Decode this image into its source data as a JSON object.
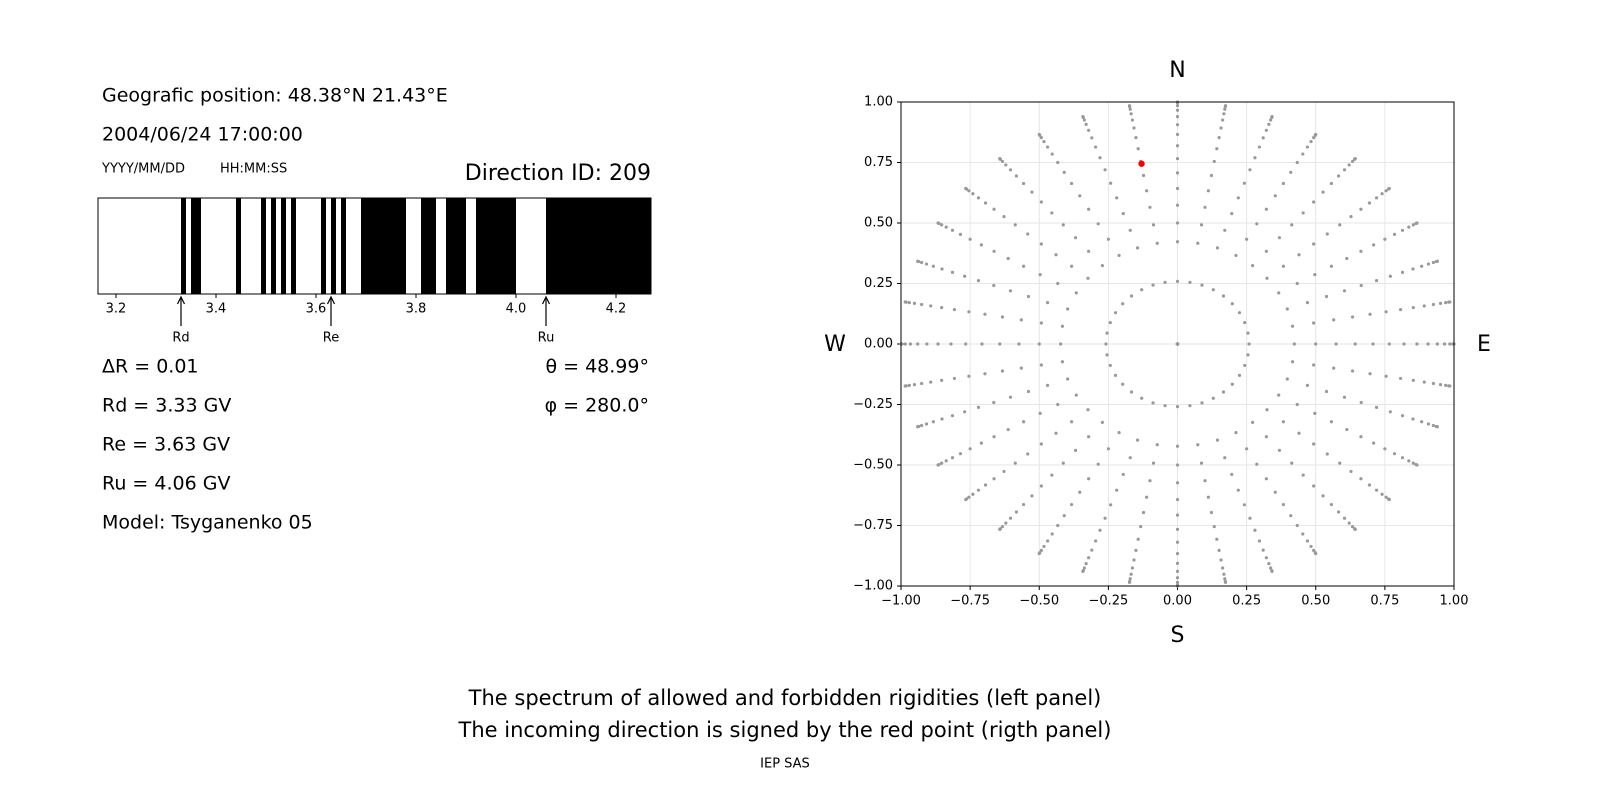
{
  "info": {
    "position": "Geografic position: 48.38°N 21.43°E",
    "datetime": "2004/06/24 17:00:00",
    "date_format": "YYYY/MM/DD",
    "time_format": "HH:MM:SS",
    "direction_id": "Direction ID: 209",
    "delta_r": "ΔR = 0.01",
    "theta": "θ = 48.99°",
    "phi": "φ = 280.0°",
    "rd": "Rd = 3.33 GV",
    "re": "Re = 3.63 GV",
    "ru": "Ru = 4.06 GV",
    "model": "Model: Tsyganenko 05"
  },
  "caption": {
    "line1": "The spectrum of allowed and forbidden rigidities (left panel)",
    "line2": "The incoming direction is signed by the red point (rigth panel)",
    "credit": "IEP SAS"
  },
  "chart_data": [
    {
      "type": "spectrum",
      "xlim": [
        3.164,
        4.27
      ],
      "xticks": [
        3.2,
        3.4,
        3.6,
        3.8,
        {
          "value": 4,
          "label": "4.0"
        },
        4.2
      ],
      "color": "#000000",
      "forbidden": [
        [
          3.33,
          3.34
        ],
        [
          3.35,
          3.37
        ],
        [
          3.44,
          3.45
        ],
        [
          3.49,
          3.5
        ],
        [
          3.51,
          3.52
        ],
        [
          3.53,
          3.54
        ],
        [
          3.55,
          3.56
        ],
        [
          3.61,
          3.62
        ],
        [
          3.63,
          3.64
        ],
        [
          3.65,
          3.66
        ],
        [
          3.69,
          3.78
        ],
        [
          3.81,
          3.84
        ],
        [
          3.86,
          3.9
        ],
        [
          3.92,
          4.0
        ],
        [
          4.06,
          4.27
        ]
      ],
      "markers": [
        {
          "label": "Rd",
          "value": 3.33
        },
        {
          "label": "Re",
          "value": 3.63
        },
        {
          "label": "Ru",
          "value": 4.06
        }
      ]
    },
    {
      "type": "directions",
      "xlim": [
        -1,
        1
      ],
      "ylim": [
        -1,
        1
      ],
      "grid": true,
      "color": "#999999",
      "xticks": [
        {
          "value": -1,
          "label": "−1.00"
        },
        {
          "value": -0.75,
          "label": "−0.75"
        },
        {
          "value": -0.5,
          "label": "−0.50"
        },
        {
          "value": -0.25,
          "label": "−0.25"
        },
        {
          "value": 0,
          "label": "0.00"
        },
        {
          "value": 0.25,
          "label": "0.25"
        },
        {
          "value": 0.5,
          "label": "0.50"
        },
        {
          "value": 0.75,
          "label": "0.75"
        },
        {
          "value": 1,
          "label": "1.00"
        }
      ],
      "yticks": [
        {
          "value": -1,
          "label": "−1.00"
        },
        {
          "value": -0.75,
          "label": "−0.75"
        },
        {
          "value": -0.5,
          "label": "−0.50"
        },
        {
          "value": -0.25,
          "label": "−0.25"
        },
        {
          "value": 0,
          "label": "0.00"
        },
        {
          "value": 0.25,
          "label": "0.25"
        },
        {
          "value": 0.5,
          "label": "0.50"
        },
        {
          "value": 0.75,
          "label": "0.75"
        },
        {
          "value": 1,
          "label": "1.00"
        }
      ],
      "zenith": [
        0,
        15,
        25,
        30,
        35,
        40,
        45,
        50,
        55,
        60,
        65,
        70,
        75,
        80,
        85,
        90
      ],
      "azimuth": [
        0,
        10,
        20,
        30,
        40,
        50,
        60,
        70,
        80,
        90,
        100,
        110,
        120,
        130,
        140,
        150,
        160,
        170,
        180,
        190,
        200,
        210,
        220,
        230,
        240,
        250,
        260,
        270,
        280,
        290,
        300,
        310,
        320,
        330,
        340,
        350
      ],
      "selected": {
        "x": -0.13,
        "y": 0.745,
        "color": "#ee0000"
      },
      "compass": {
        "north": "N",
        "south": "S",
        "west": "W",
        "east": "E"
      }
    }
  ]
}
